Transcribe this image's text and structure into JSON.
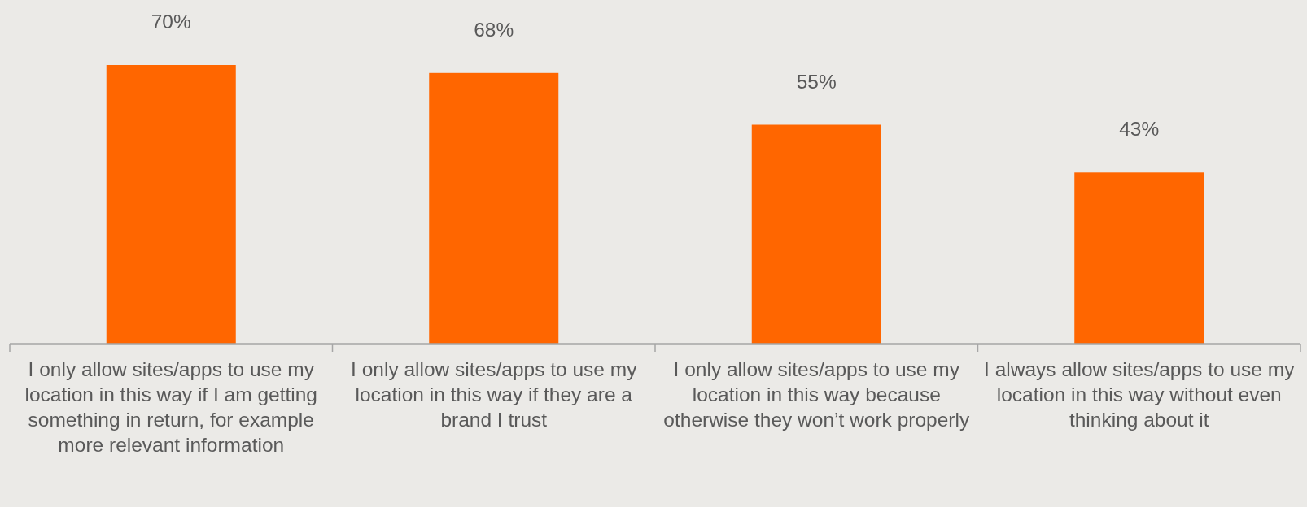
{
  "chart_data": {
    "type": "bar",
    "categories": [
      "I only allow sites/apps to use my location in this way if I am getting something in return, for example more relevant information",
      "I only allow sites/apps to use my location in this way if they are a brand I trust",
      "I only allow sites/apps to use my location in this way because otherwise they won’t work properly",
      "I always allow sites/apps to use my location in this way without even thinking about it"
    ],
    "values": [
      70,
      68,
      55,
      43
    ],
    "value_labels": [
      "70%",
      "68%",
      "55%",
      "43%"
    ],
    "color": "#ff6600"
  }
}
